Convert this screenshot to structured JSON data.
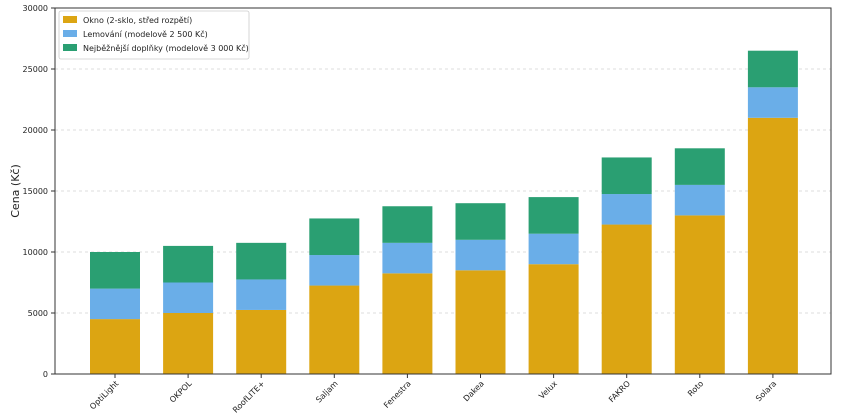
{
  "chart_data": {
    "type": "bar",
    "stacked": true,
    "title": "",
    "xlabel": "",
    "ylabel": "Cena (Kč)",
    "ylim": [
      0,
      30000
    ],
    "yticks": [
      0,
      5000,
      10000,
      15000,
      20000,
      25000,
      30000
    ],
    "grid": "horizontal dashed",
    "legend_position": "top-left",
    "categories": [
      "OptiLight",
      "OKPOL",
      "RoofLITE+",
      "Saljam",
      "Fenestra",
      "Dakea",
      "Velux",
      "FAKRO",
      "Roto",
      "Solara"
    ],
    "series": [
      {
        "name": "Okno (2-sklo, střed rozpětí)",
        "color": "#dca512",
        "values": [
          4500,
          5000,
          5250,
          7250,
          8250,
          8500,
          9000,
          12250,
          13000,
          21000
        ]
      },
      {
        "name": "Lemování (modelově 2 500 Kč)",
        "color": "#6aaee8",
        "values": [
          2500,
          2500,
          2500,
          2500,
          2500,
          2500,
          2500,
          2500,
          2500,
          2500
        ]
      },
      {
        "name": "Nejběžnější doplňky (modelově 3 000 Kč)",
        "color": "#2a9f72",
        "values": [
          3000,
          3000,
          3000,
          3000,
          3000,
          3000,
          3000,
          3000,
          3000,
          3000
        ]
      }
    ]
  }
}
